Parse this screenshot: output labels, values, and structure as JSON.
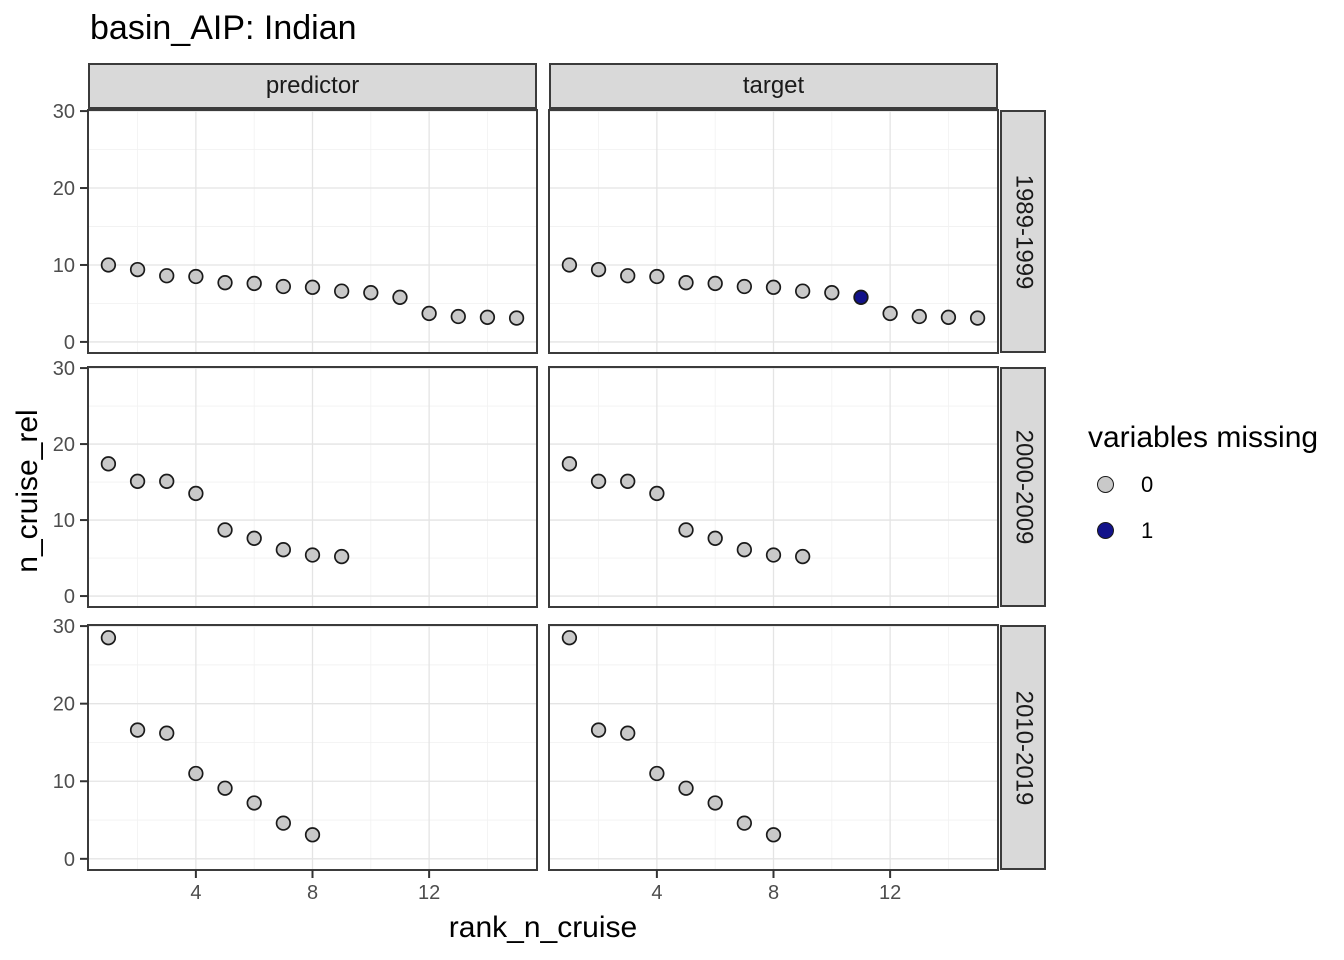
{
  "chart_data": {
    "type": "scatter",
    "title": "basin_AIP: Indian",
    "xlabel": "rank_n_cruise",
    "ylabel": "n_cruise_rel",
    "facet_columns": [
      "predictor",
      "target"
    ],
    "facet_rows": [
      "1989-1999",
      "2000-2009",
      "2010-2019"
    ],
    "x_ticks": [
      4,
      8,
      12
    ],
    "y_ticks": [
      0,
      10,
      20,
      30
    ],
    "x_minor_gridlines": [
      2,
      6,
      10,
      14
    ],
    "y_minor_gridlines": [
      5,
      15,
      25
    ],
    "x_range": [
      0.3,
      15.7
    ],
    "y_range": [
      -1.44,
      30.14
    ],
    "grid": true,
    "legend": {
      "title": "variables missing",
      "position": "right",
      "items": [
        {
          "label": "0",
          "fill": "#C9C9C9"
        },
        {
          "label": "1",
          "fill": "#12128A"
        }
      ]
    },
    "panels": [
      {
        "facet_col": "predictor",
        "facet_row": "1989-1999",
        "x": [
          1,
          2,
          3,
          4,
          5,
          6,
          7,
          8,
          9,
          10,
          11,
          12,
          13,
          14,
          15
        ],
        "y": [
          10.0,
          9.4,
          8.6,
          8.5,
          7.7,
          7.6,
          7.2,
          7.1,
          6.6,
          6.4,
          5.8,
          3.7,
          3.3,
          3.2,
          3.1
        ],
        "variables_missing": [
          0,
          0,
          0,
          0,
          0,
          0,
          0,
          0,
          0,
          0,
          0,
          0,
          0,
          0,
          0
        ]
      },
      {
        "facet_col": "target",
        "facet_row": "1989-1999",
        "x": [
          1,
          2,
          3,
          4,
          5,
          6,
          7,
          8,
          9,
          10,
          11,
          12,
          13,
          14,
          15
        ],
        "y": [
          10.0,
          9.4,
          8.6,
          8.5,
          7.7,
          7.6,
          7.2,
          7.1,
          6.6,
          6.4,
          5.8,
          3.7,
          3.3,
          3.2,
          3.1
        ],
        "variables_missing": [
          0,
          0,
          0,
          0,
          0,
          0,
          0,
          0,
          0,
          0,
          1,
          0,
          0,
          0,
          0
        ]
      },
      {
        "facet_col": "predictor",
        "facet_row": "2000-2009",
        "x": [
          1,
          2,
          3,
          4,
          5,
          6,
          7,
          8,
          9
        ],
        "y": [
          17.4,
          15.1,
          15.1,
          13.5,
          8.7,
          7.6,
          6.1,
          5.4,
          5.2
        ],
        "variables_missing": [
          0,
          0,
          0,
          0,
          0,
          0,
          0,
          0,
          0
        ]
      },
      {
        "facet_col": "target",
        "facet_row": "2000-2009",
        "x": [
          1,
          2,
          3,
          4,
          5,
          6,
          7,
          8,
          9
        ],
        "y": [
          17.4,
          15.1,
          15.1,
          13.5,
          8.7,
          7.6,
          6.1,
          5.4,
          5.2
        ],
        "variables_missing": [
          0,
          0,
          0,
          0,
          0,
          0,
          0,
          0,
          0
        ]
      },
      {
        "facet_col": "predictor",
        "facet_row": "2010-2019",
        "x": [
          1,
          2,
          3,
          4,
          5,
          6,
          7,
          8
        ],
        "y": [
          28.5,
          16.6,
          16.2,
          11.0,
          9.1,
          7.2,
          4.6,
          3.1
        ],
        "variables_missing": [
          0,
          0,
          0,
          0,
          0,
          0,
          0,
          0
        ]
      },
      {
        "facet_col": "target",
        "facet_row": "2010-2019",
        "x": [
          1,
          2,
          3,
          4,
          5,
          6,
          7,
          8
        ],
        "y": [
          28.5,
          16.6,
          16.2,
          11.0,
          9.1,
          7.2,
          4.6,
          3.1
        ],
        "variables_missing": [
          0,
          0,
          0,
          0,
          0,
          0,
          0,
          0
        ]
      }
    ]
  },
  "colors": {
    "point_stroke": "#1A1A1A",
    "point_fill_missing_0": "#C9C9C9",
    "point_fill_missing_1": "#12128A",
    "strip_fill": "#D9D9D9",
    "strip_border": "#3B3B3B",
    "panel_border": "#3B3B3B",
    "panel_background": "#FFFFFF",
    "grid_major": "#E4E4E4",
    "grid_minor": "#F2F2F2",
    "axis_text": "#4D4D4D",
    "tick_mark": "#333333"
  }
}
